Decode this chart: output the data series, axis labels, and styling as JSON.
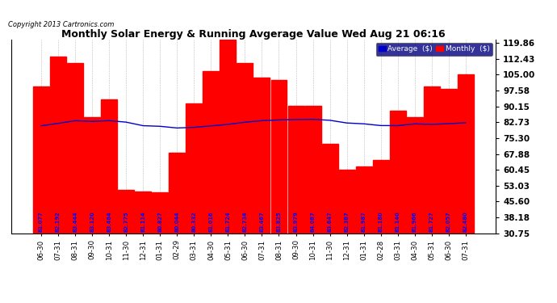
{
  "title": "Monthly Solar Energy & Running Avgerage Value Wed Aug 21 06:16",
  "copyright": "Copyright 2013 Cartronics.com",
  "categories": [
    "06-30",
    "07-31",
    "08-31",
    "09-30",
    "10-31",
    "11-30",
    "12-31",
    "01-31",
    "02-29",
    "03-31",
    "04-30",
    "05-31",
    "06-30",
    "07-31",
    "08-31",
    "09-30",
    "10-31",
    "11-30",
    "12-31",
    "01-31",
    "02-28",
    "03-31",
    "04-30",
    "05-31",
    "06-30",
    "07-31"
  ],
  "bar_values": [
    99.5,
    113.5,
    110.5,
    85.0,
    93.5,
    51.0,
    50.5,
    50.0,
    68.5,
    91.5,
    106.5,
    121.5,
    110.5,
    103.5,
    102.5,
    90.5,
    90.5,
    72.5,
    60.5,
    62.0,
    65.0,
    88.0,
    85.0,
    99.5,
    98.5,
    105.0
  ],
  "avg_values": [
    81.077,
    82.192,
    83.444,
    83.12,
    83.464,
    82.775,
    81.114,
    80.827,
    80.044,
    80.332,
    81.016,
    81.724,
    82.734,
    83.467,
    83.825,
    83.979,
    84.087,
    83.647,
    82.387,
    81.987,
    81.18,
    81.14,
    81.966,
    81.727,
    82.057,
    82.48
  ],
  "bar_color": "#ff0000",
  "avg_line_color": "#0000cc",
  "bg_color": "#ffffff",
  "grid_color": "#bbbbbb",
  "yticks": [
    30.75,
    38.18,
    45.6,
    53.03,
    60.45,
    67.88,
    75.3,
    82.73,
    90.15,
    97.58,
    105.0,
    112.43,
    119.86
  ],
  "ylim_min": 30.75,
  "ylim_max": 121.5,
  "label_color": "#0000ff",
  "legend_bg": "#000080",
  "legend_avg_label": "Average  ($)",
  "legend_monthly_label": "Monthly  ($)"
}
